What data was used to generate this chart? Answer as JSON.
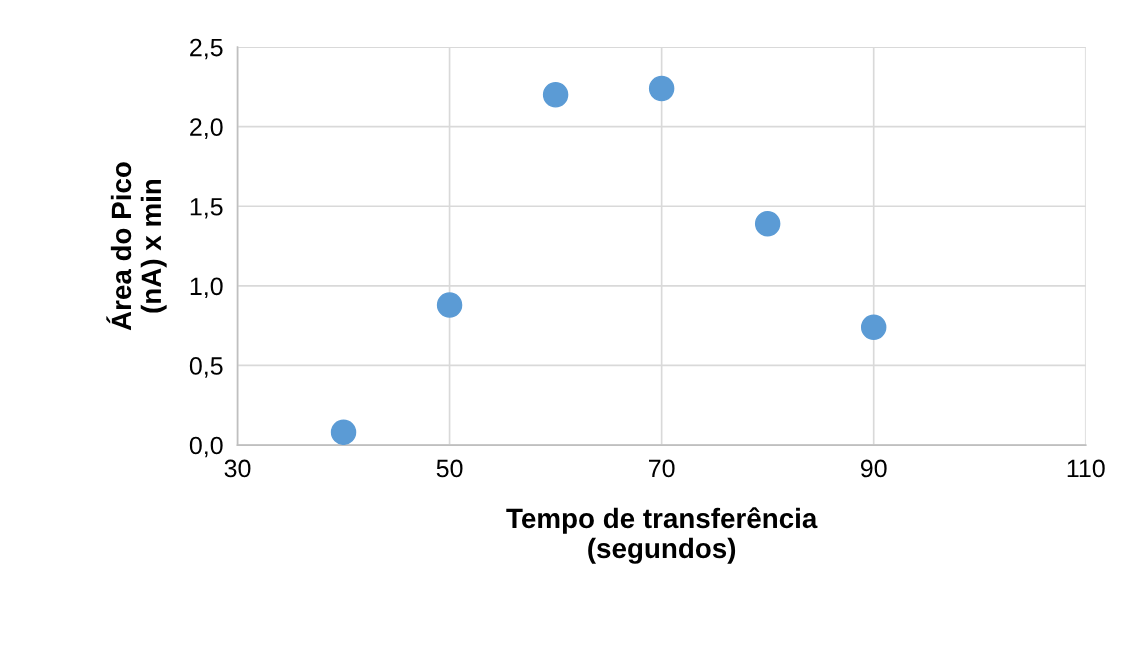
{
  "chart_data": {
    "type": "scatter",
    "xlabel": "Tempo de transferência\n(segundos)",
    "ylabel": "Área do Pico\n(nA) x min",
    "x": [
      40,
      50,
      60,
      70,
      80,
      90
    ],
    "series": [
      {
        "color": "#5b9bd5",
        "values": [
          0.08,
          0.88,
          2.2,
          2.24,
          1.39,
          0.74
        ]
      }
    ],
    "xlim": [
      30,
      110
    ],
    "xticks": [
      30,
      50,
      70,
      90,
      110
    ],
    "ylim": [
      0,
      2.5
    ],
    "yticks": [
      {
        "value": 0,
        "label": "0,0"
      },
      {
        "value": 0.5,
        "label": "0,5"
      },
      {
        "value": 1.0,
        "label": "1,0"
      },
      {
        "value": 1.5,
        "label": "1,5"
      },
      {
        "value": 2.0,
        "label": "2,0"
      },
      {
        "value": 2.5,
        "label": "2,5"
      }
    ],
    "grid": true,
    "marker": "circle"
  }
}
